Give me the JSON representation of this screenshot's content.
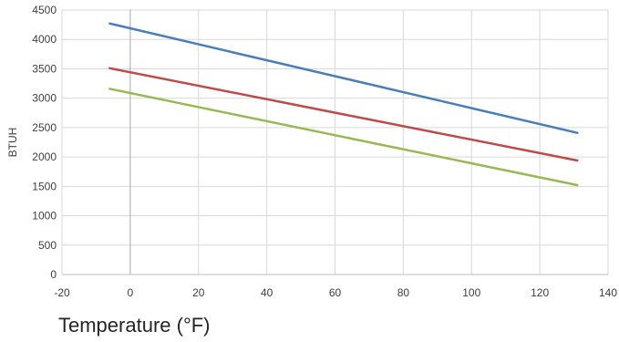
{
  "chart_data": {
    "type": "line",
    "title": "",
    "xlabel": "Temperature (°F)",
    "ylabel": "BTUH",
    "xlim": [
      -20,
      140
    ],
    "ylim": [
      0,
      4500
    ],
    "x_ticks": [
      -20,
      0,
      20,
      40,
      60,
      80,
      100,
      120,
      140
    ],
    "y_ticks": [
      0,
      500,
      1000,
      1500,
      2000,
      2500,
      3000,
      3500,
      4000,
      4500
    ],
    "grid": true,
    "legend": "none",
    "series": [
      {
        "color": "#4a7ebb",
        "x": [
          -6,
          131
        ],
        "y": [
          4270,
          2410
        ]
      },
      {
        "color": "#be4b48",
        "x": [
          -6,
          131
        ],
        "y": [
          3510,
          1940
        ]
      },
      {
        "color": "#98b954",
        "x": [
          -6,
          131
        ],
        "y": [
          3160,
          1520
        ]
      }
    ]
  }
}
